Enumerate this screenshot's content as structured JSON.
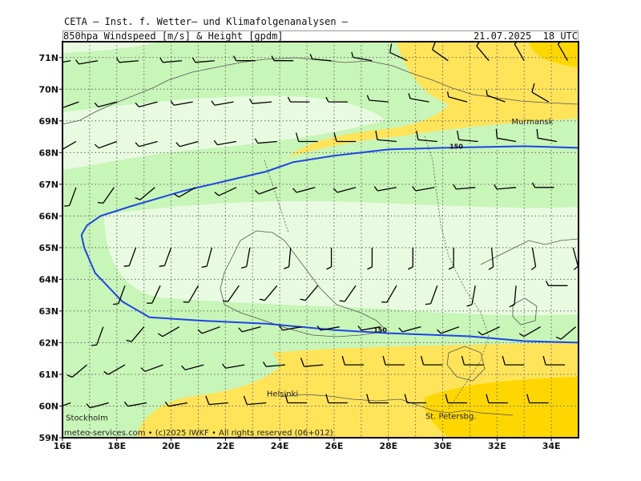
{
  "header": {
    "title": "CETA — Inst. f. Wetter— und Klimafolgenanalysen —",
    "subtitle": "850hpa_Windspeed_[m/s]_&_Height_[gpdm]",
    "valid_time": "21.07.2025  18 UTC"
  },
  "credit": "meteo-services.com • (c)2025 IWKF • All rights reserved (06+012)",
  "lat_labels": [
    "71N",
    "70N",
    "69N",
    "68N",
    "67N",
    "66N",
    "65N",
    "64N",
    "63N",
    "62N",
    "61N",
    "60N",
    "59N"
  ],
  "lon_labels": [
    "16E",
    "18E",
    "20E",
    "22E",
    "24E",
    "26E",
    "28E",
    "30E",
    "32E",
    "34E"
  ],
  "cities": [
    {
      "name": "Murmansk",
      "lon": 33.3,
      "lat": 68.9
    },
    {
      "name": "Helsinki",
      "lon": 24.1,
      "lat": 60.3
    },
    {
      "name": "Stockholm",
      "lon": 16.9,
      "lat": 59.55
    },
    {
      "name": "St. Petersbg.",
      "lon": 30.3,
      "lat": 59.6
    }
  ],
  "contours": [
    {
      "label": "150",
      "label_at": {
        "lon": 30.5,
        "lat": 68.2
      },
      "points": [
        [
          16.7,
          65.4
        ],
        [
          16.9,
          65.7
        ],
        [
          17.4,
          66.0
        ],
        [
          18.5,
          66.3
        ],
        [
          20.5,
          66.8
        ],
        [
          22.0,
          67.1
        ],
        [
          23.5,
          67.4
        ],
        [
          24.5,
          67.7
        ],
        [
          26.0,
          67.9
        ],
        [
          28.0,
          68.1
        ],
        [
          30.0,
          68.15
        ],
        [
          33.0,
          68.2
        ],
        [
          35.0,
          68.15
        ]
      ]
    },
    {
      "label": "150",
      "label_at": {
        "lon": 27.7,
        "lat": 62.4
      },
      "points": [
        [
          16.7,
          65.4
        ],
        [
          16.8,
          65.0
        ],
        [
          17.2,
          64.2
        ],
        [
          18.2,
          63.3
        ],
        [
          19.2,
          62.8
        ],
        [
          21.0,
          62.7
        ],
        [
          23.5,
          62.6
        ],
        [
          26.0,
          62.4
        ],
        [
          28.0,
          62.3
        ],
        [
          31.0,
          62.2
        ],
        [
          33.0,
          62.05
        ],
        [
          35.0,
          62.0
        ]
      ]
    }
  ],
  "colors": {
    "contour": "#1f45e6",
    "speed_low": "#e8fbe0",
    "speed_mid": "#c8f5b8",
    "speed_high": "#ffe45a",
    "speed_peak": "#ffd700",
    "coast": "#555555",
    "barb": "#000000"
  },
  "wind_barbs": [
    {
      "lon": 16.3,
      "lat": 70.9,
      "speed": 5,
      "dir": 260
    },
    {
      "lon": 17.3,
      "lat": 70.9,
      "speed": 5,
      "dir": 260
    },
    {
      "lon": 18.8,
      "lat": 70.9,
      "speed": 5,
      "dir": 265
    },
    {
      "lon": 20.4,
      "lat": 70.9,
      "speed": 5,
      "dir": 265
    },
    {
      "lon": 21.6,
      "lat": 70.9,
      "speed": 5,
      "dir": 265
    },
    {
      "lon": 23.1,
      "lat": 70.9,
      "speed": 5,
      "dir": 270
    },
    {
      "lon": 24.5,
      "lat": 70.9,
      "speed": 5,
      "dir": 270
    },
    {
      "lon": 25.9,
      "lat": 70.9,
      "speed": 5,
      "dir": 275
    },
    {
      "lon": 27.4,
      "lat": 70.9,
      "speed": 5,
      "dir": 280
    },
    {
      "lon": 28.7,
      "lat": 70.9,
      "speed": 10,
      "dir": 295
    },
    {
      "lon": 30.2,
      "lat": 70.9,
      "speed": 10,
      "dir": 305
    },
    {
      "lon": 31.7,
      "lat": 70.9,
      "speed": 10,
      "dir": 320
    },
    {
      "lon": 33.0,
      "lat": 70.9,
      "speed": 10,
      "dir": 330
    },
    {
      "lon": 34.6,
      "lat": 70.9,
      "speed": 10,
      "dir": 330
    },
    {
      "lon": 16.6,
      "lat": 69.6,
      "speed": 5,
      "dir": 250
    },
    {
      "lon": 18.0,
      "lat": 69.6,
      "speed": 5,
      "dir": 255
    },
    {
      "lon": 19.5,
      "lat": 69.6,
      "speed": 5,
      "dir": 255
    },
    {
      "lon": 20.8,
      "lat": 69.6,
      "speed": 5,
      "dir": 260
    },
    {
      "lon": 22.3,
      "lat": 69.6,
      "speed": 5,
      "dir": 260
    },
    {
      "lon": 23.7,
      "lat": 69.6,
      "speed": 5,
      "dir": 265
    },
    {
      "lon": 25.1,
      "lat": 69.6,
      "speed": 5,
      "dir": 270
    },
    {
      "lon": 26.5,
      "lat": 69.6,
      "speed": 5,
      "dir": 270
    },
    {
      "lon": 28.0,
      "lat": 69.6,
      "speed": 5,
      "dir": 275
    },
    {
      "lon": 29.5,
      "lat": 69.6,
      "speed": 5,
      "dir": 280
    },
    {
      "lon": 30.9,
      "lat": 69.6,
      "speed": 5,
      "dir": 285
    },
    {
      "lon": 32.3,
      "lat": 69.6,
      "speed": 5,
      "dir": 290
    },
    {
      "lon": 33.9,
      "lat": 69.6,
      "speed": 10,
      "dir": 300
    },
    {
      "lon": 16.5,
      "lat": 68.35,
      "speed": 5,
      "dir": 240
    },
    {
      "lon": 18.0,
      "lat": 68.35,
      "speed": 5,
      "dir": 250
    },
    {
      "lon": 19.5,
      "lat": 68.35,
      "speed": 5,
      "dir": 255
    },
    {
      "lon": 21.0,
      "lat": 68.35,
      "speed": 5,
      "dir": 255
    },
    {
      "lon": 22.4,
      "lat": 68.35,
      "speed": 5,
      "dir": 260
    },
    {
      "lon": 23.9,
      "lat": 68.35,
      "speed": 5,
      "dir": 265
    },
    {
      "lon": 25.4,
      "lat": 68.35,
      "speed": 10,
      "dir": 270
    },
    {
      "lon": 26.8,
      "lat": 68.35,
      "speed": 10,
      "dir": 270
    },
    {
      "lon": 28.3,
      "lat": 68.35,
      "speed": 10,
      "dir": 275
    },
    {
      "lon": 29.8,
      "lat": 68.35,
      "speed": 10,
      "dir": 275
    },
    {
      "lon": 31.3,
      "lat": 68.35,
      "speed": 10,
      "dir": 275
    },
    {
      "lon": 32.7,
      "lat": 68.35,
      "speed": 10,
      "dir": 280
    },
    {
      "lon": 34.2,
      "lat": 68.35,
      "speed": 10,
      "dir": 280
    },
    {
      "lon": 16.5,
      "lat": 66.9,
      "speed": 5,
      "dir": 200
    },
    {
      "lon": 17.9,
      "lat": 66.9,
      "speed": 5,
      "dir": 215
    },
    {
      "lon": 19.4,
      "lat": 66.9,
      "speed": 5,
      "dir": 230
    },
    {
      "lon": 20.9,
      "lat": 66.9,
      "speed": 5,
      "dir": 240
    },
    {
      "lon": 22.4,
      "lat": 66.9,
      "speed": 5,
      "dir": 245
    },
    {
      "lon": 23.9,
      "lat": 66.9,
      "speed": 5,
      "dir": 250
    },
    {
      "lon": 25.3,
      "lat": 66.9,
      "speed": 5,
      "dir": 255
    },
    {
      "lon": 26.8,
      "lat": 66.9,
      "speed": 5,
      "dir": 255
    },
    {
      "lon": 28.3,
      "lat": 66.9,
      "speed": 5,
      "dir": 260
    },
    {
      "lon": 29.7,
      "lat": 66.9,
      "speed": 5,
      "dir": 260
    },
    {
      "lon": 31.2,
      "lat": 66.9,
      "speed": 5,
      "dir": 265
    },
    {
      "lon": 32.7,
      "lat": 66.9,
      "speed": 5,
      "dir": 265
    },
    {
      "lon": 34.1,
      "lat": 66.9,
      "speed": 5,
      "dir": 270
    },
    {
      "lon": 18.7,
      "lat": 65.0,
      "speed": 5,
      "dir": 200
    },
    {
      "lon": 20.0,
      "lat": 65.0,
      "speed": 5,
      "dir": 200
    },
    {
      "lon": 21.5,
      "lat": 65.0,
      "speed": 5,
      "dir": 195
    },
    {
      "lon": 22.9,
      "lat": 65.0,
      "speed": 5,
      "dir": 190
    },
    {
      "lon": 24.4,
      "lat": 65.0,
      "speed": 5,
      "dir": 185
    },
    {
      "lon": 25.9,
      "lat": 65.0,
      "speed": 5,
      "dir": 180
    },
    {
      "lon": 27.4,
      "lat": 65.0,
      "speed": 5,
      "dir": 180
    },
    {
      "lon": 28.9,
      "lat": 65.0,
      "speed": 5,
      "dir": 180
    },
    {
      "lon": 30.4,
      "lat": 65.0,
      "speed": 5,
      "dir": 180
    },
    {
      "lon": 31.8,
      "lat": 65.0,
      "speed": 5,
      "dir": 175
    },
    {
      "lon": 33.3,
      "lat": 65.0,
      "speed": 5,
      "dir": 170
    },
    {
      "lon": 34.8,
      "lat": 65.0,
      "speed": 5,
      "dir": 165
    },
    {
      "lon": 18.3,
      "lat": 63.8,
      "speed": 5,
      "dir": 200
    },
    {
      "lon": 19.6,
      "lat": 63.8,
      "speed": 5,
      "dir": 205
    },
    {
      "lon": 21.0,
      "lat": 63.8,
      "speed": 5,
      "dir": 210
    },
    {
      "lon": 22.5,
      "lat": 63.8,
      "speed": 5,
      "dir": 215
    },
    {
      "lon": 23.9,
      "lat": 63.8,
      "speed": 5,
      "dir": 220
    },
    {
      "lon": 25.4,
      "lat": 63.8,
      "speed": 5,
      "dir": 220
    },
    {
      "lon": 26.8,
      "lat": 63.8,
      "speed": 5,
      "dir": 215
    },
    {
      "lon": 28.3,
      "lat": 63.8,
      "speed": 5,
      "dir": 210
    },
    {
      "lon": 29.8,
      "lat": 63.8,
      "speed": 5,
      "dir": 200
    },
    {
      "lon": 31.2,
      "lat": 63.8,
      "speed": 5,
      "dir": 190
    },
    {
      "lon": 32.7,
      "lat": 63.8,
      "speed": 5,
      "dir": 185
    },
    {
      "lon": 34.6,
      "lat": 63.8,
      "speed": 5,
      "dir": 270
    },
    {
      "lon": 17.5,
      "lat": 62.5,
      "speed": 5,
      "dir": 200
    },
    {
      "lon": 19.0,
      "lat": 62.5,
      "speed": 5,
      "dir": 220
    },
    {
      "lon": 20.3,
      "lat": 62.5,
      "speed": 5,
      "dir": 240
    },
    {
      "lon": 21.8,
      "lat": 62.5,
      "speed": 5,
      "dir": 250
    },
    {
      "lon": 23.3,
      "lat": 62.5,
      "speed": 5,
      "dir": 255
    },
    {
      "lon": 24.8,
      "lat": 62.5,
      "speed": 5,
      "dir": 260
    },
    {
      "lon": 26.2,
      "lat": 62.5,
      "speed": 5,
      "dir": 260
    },
    {
      "lon": 27.7,
      "lat": 62.5,
      "speed": 5,
      "dir": 260
    },
    {
      "lon": 29.2,
      "lat": 62.5,
      "speed": 5,
      "dir": 255
    },
    {
      "lon": 30.6,
      "lat": 62.5,
      "speed": 5,
      "dir": 250
    },
    {
      "lon": 32.1,
      "lat": 62.5,
      "speed": 5,
      "dir": 245
    },
    {
      "lon": 33.6,
      "lat": 62.5,
      "speed": 5,
      "dir": 240
    },
    {
      "lon": 34.9,
      "lat": 62.5,
      "speed": 5,
      "dir": 230
    },
    {
      "lon": 16.9,
      "lat": 61.3,
      "speed": 5,
      "dir": 230
    },
    {
      "lon": 18.3,
      "lat": 61.3,
      "speed": 5,
      "dir": 240
    },
    {
      "lon": 19.7,
      "lat": 61.3,
      "speed": 5,
      "dir": 250
    },
    {
      "lon": 21.2,
      "lat": 61.3,
      "speed": 5,
      "dir": 255
    },
    {
      "lon": 22.7,
      "lat": 61.3,
      "speed": 5,
      "dir": 260
    },
    {
      "lon": 24.2,
      "lat": 61.3,
      "speed": 5,
      "dir": 265
    },
    {
      "lon": 25.6,
      "lat": 61.3,
      "speed": 10,
      "dir": 265
    },
    {
      "lon": 27.1,
      "lat": 61.3,
      "speed": 10,
      "dir": 270
    },
    {
      "lon": 28.6,
      "lat": 61.3,
      "speed": 10,
      "dir": 270
    },
    {
      "lon": 30.0,
      "lat": 61.3,
      "speed": 10,
      "dir": 270
    },
    {
      "lon": 31.5,
      "lat": 61.3,
      "speed": 10,
      "dir": 270
    },
    {
      "lon": 33.0,
      "lat": 61.3,
      "speed": 10,
      "dir": 270
    },
    {
      "lon": 34.5,
      "lat": 61.3,
      "speed": 10,
      "dir": 270
    },
    {
      "lon": 16.3,
      "lat": 60.1,
      "speed": 5,
      "dir": 250
    },
    {
      "lon": 17.7,
      "lat": 60.1,
      "speed": 5,
      "dir": 255
    },
    {
      "lon": 19.1,
      "lat": 60.1,
      "speed": 5,
      "dir": 260
    },
    {
      "lon": 20.6,
      "lat": 60.1,
      "speed": 5,
      "dir": 260
    },
    {
      "lon": 22.1,
      "lat": 60.1,
      "speed": 10,
      "dir": 265
    },
    {
      "lon": 23.5,
      "lat": 60.1,
      "speed": 10,
      "dir": 265
    },
    {
      "lon": 25.0,
      "lat": 60.1,
      "speed": 10,
      "dir": 270
    },
    {
      "lon": 26.5,
      "lat": 60.1,
      "speed": 10,
      "dir": 270
    },
    {
      "lon": 28.0,
      "lat": 60.1,
      "speed": 10,
      "dir": 270
    },
    {
      "lon": 29.4,
      "lat": 60.1,
      "speed": 10,
      "dir": 270
    },
    {
      "lon": 30.9,
      "lat": 60.1,
      "speed": 10,
      "dir": 270
    },
    {
      "lon": 32.4,
      "lat": 60.1,
      "speed": 10,
      "dir": 270
    },
    {
      "lon": 33.9,
      "lat": 60.1,
      "speed": 10,
      "dir": 270
    }
  ]
}
